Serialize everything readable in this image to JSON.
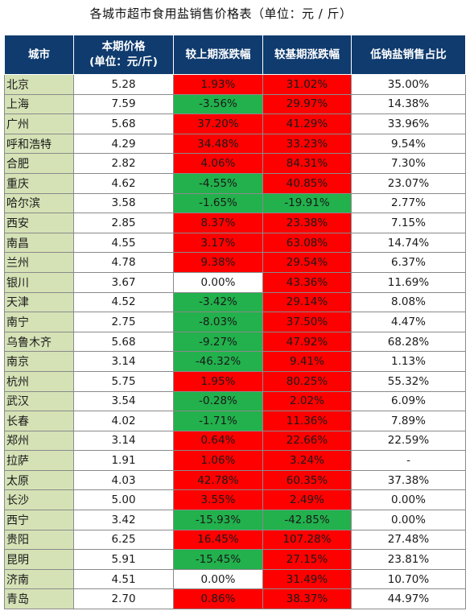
{
  "title": "各城市超市食用盐销售价格表（单位：元 / 斤）",
  "headers": {
    "city": "城市",
    "price_line1": "本期价格",
    "price_line2": "(单位：元/斤)",
    "mom": "较上期涨跌幅",
    "yoy": "较基期涨跌幅",
    "low_share": "低钠盐销售占比"
  },
  "colors": {
    "header_bg": "#0f3b6e",
    "city_bg": "#d5e2b6",
    "up": "#ff0000",
    "down": "#22b14c",
    "flat": "#ffffff"
  },
  "rows": [
    {
      "city": "北京",
      "price": "5.28",
      "mom": "1.93%",
      "yoy": "31.02%",
      "low": "35.00%"
    },
    {
      "city": "上海",
      "price": "7.59",
      "mom": "-3.56%",
      "yoy": "29.97%",
      "low": "14.38%"
    },
    {
      "city": "广州",
      "price": "5.68",
      "mom": "37.20%",
      "yoy": "41.29%",
      "low": "33.96%"
    },
    {
      "city": "呼和浩特",
      "price": "4.29",
      "mom": "34.48%",
      "yoy": "33.23%",
      "low": "9.54%"
    },
    {
      "city": "合肥",
      "price": "2.82",
      "mom": "4.06%",
      "yoy": "84.31%",
      "low": "7.30%"
    },
    {
      "city": "重庆",
      "price": "4.62",
      "mom": "-4.55%",
      "yoy": "40.85%",
      "low": "23.07%"
    },
    {
      "city": "哈尔滨",
      "price": "3.58",
      "mom": "-1.65%",
      "yoy": "-19.91%",
      "low": "2.77%"
    },
    {
      "city": "西安",
      "price": "2.85",
      "mom": "8.37%",
      "yoy": "23.38%",
      "low": "7.15%"
    },
    {
      "city": "南昌",
      "price": "4.55",
      "mom": "3.17%",
      "yoy": "63.08%",
      "low": "14.74%"
    },
    {
      "city": "兰州",
      "price": "4.78",
      "mom": "9.38%",
      "yoy": "29.54%",
      "low": "6.37%"
    },
    {
      "city": "银川",
      "price": "3.67",
      "mom": "0.00%",
      "yoy": "43.36%",
      "low": "11.69%"
    },
    {
      "city": "天津",
      "price": "4.52",
      "mom": "-3.42%",
      "yoy": "29.14%",
      "low": "8.08%"
    },
    {
      "city": "南宁",
      "price": "2.75",
      "mom": "-8.03%",
      "yoy": "37.50%",
      "low": "4.47%"
    },
    {
      "city": "乌鲁木齐",
      "price": "5.68",
      "mom": "-9.27%",
      "yoy": "47.92%",
      "low": "68.28%"
    },
    {
      "city": "南京",
      "price": "3.14",
      "mom": "-46.32%",
      "yoy": "9.41%",
      "low": "1.13%"
    },
    {
      "city": "杭州",
      "price": "5.75",
      "mom": "1.95%",
      "yoy": "80.25%",
      "low": "55.32%"
    },
    {
      "city": "武汉",
      "price": "3.54",
      "mom": "-0.28%",
      "yoy": "2.02%",
      "low": "6.09%"
    },
    {
      "city": "长春",
      "price": "4.02",
      "mom": "-1.71%",
      "yoy": "11.36%",
      "low": "7.89%"
    },
    {
      "city": "郑州",
      "price": "3.14",
      "mom": "0.64%",
      "yoy": "22.66%",
      "low": "22.59%"
    },
    {
      "city": "拉萨",
      "price": "1.91",
      "mom": "1.06%",
      "yoy": "3.24%",
      "low": "-"
    },
    {
      "city": "太原",
      "price": "4.03",
      "mom": "42.78%",
      "yoy": "60.35%",
      "low": "37.38%"
    },
    {
      "city": "长沙",
      "price": "5.00",
      "mom": "3.55%",
      "yoy": "2.49%",
      "low": "0.00%"
    },
    {
      "city": "西宁",
      "price": "3.42",
      "mom": "-15.93%",
      "yoy": "-42.85%",
      "low": "0.00%"
    },
    {
      "city": "贵阳",
      "price": "6.25",
      "mom": "16.45%",
      "yoy": "107.28%",
      "low": "27.48%"
    },
    {
      "city": "昆明",
      "price": "5.91",
      "mom": "-15.45%",
      "yoy": "27.15%",
      "low": "23.81%"
    },
    {
      "city": "济南",
      "price": "4.51",
      "mom": "0.00%",
      "yoy": "31.49%",
      "low": "10.70%"
    },
    {
      "city": "青岛",
      "price": "2.70",
      "mom": "0.86%",
      "yoy": "38.37%",
      "low": "44.97%"
    }
  ]
}
